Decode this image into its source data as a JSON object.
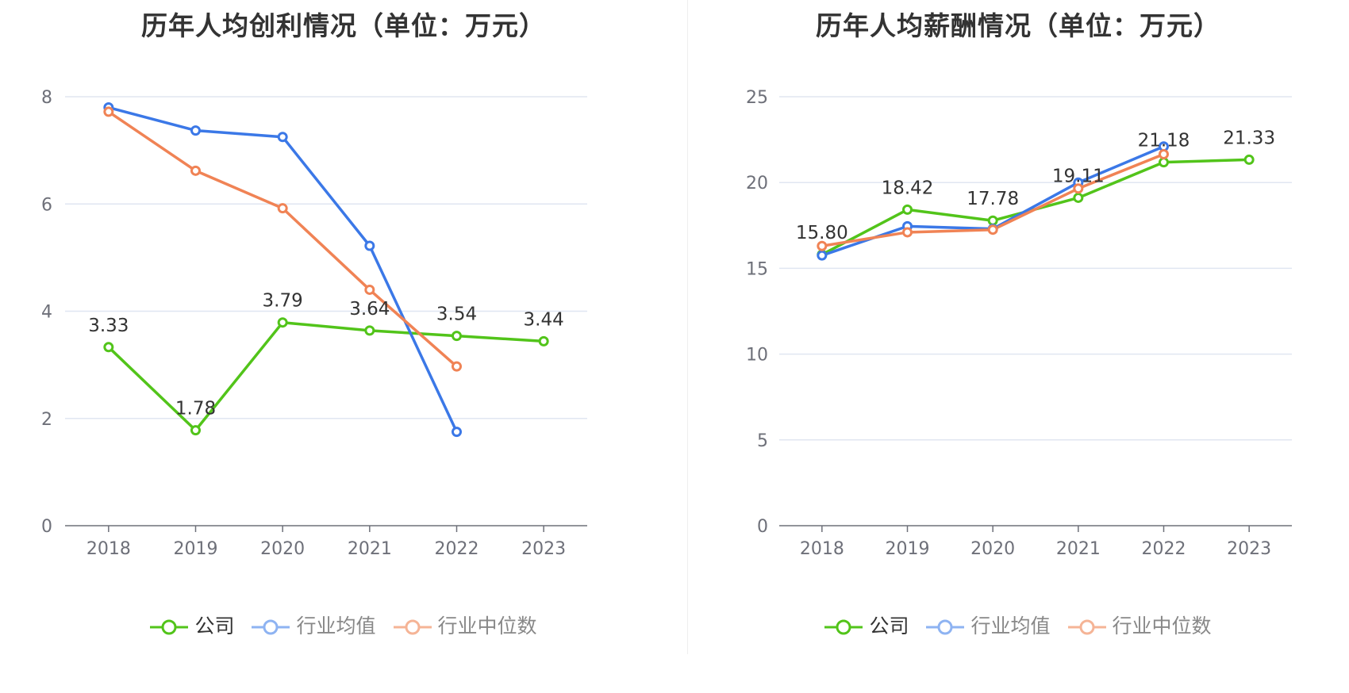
{
  "charts": [
    {
      "title": "历年人均创利情况（单位：万元）",
      "legend": [
        {
          "label": "公司",
          "color": "#52c41a"
        },
        {
          "label": "行业均值",
          "color": "#8eb3f2"
        },
        {
          "label": "行业中位数",
          "color": "#f5b496"
        }
      ]
    },
    {
      "title": "历年人均薪酬情况（单位：万元）",
      "legend": [
        {
          "label": "公司",
          "color": "#52c41a"
        },
        {
          "label": "行业均值",
          "color": "#8eb3f2"
        },
        {
          "label": "行业中位数",
          "color": "#f5b496"
        }
      ]
    }
  ],
  "chart_data": [
    {
      "type": "line",
      "title": "历年人均创利情况（单位：万元）",
      "categories": [
        "2018",
        "2019",
        "2020",
        "2021",
        "2022",
        "2023"
      ],
      "ylim": [
        0,
        8
      ],
      "yticks": [
        "0",
        "2",
        "4",
        "6",
        "8"
      ],
      "grid": true,
      "legend_position": "bottom",
      "series": [
        {
          "name": "公司",
          "color": "#52c41a",
          "values": [
            3.33,
            1.78,
            3.79,
            3.64,
            3.54,
            3.44
          ],
          "labels": [
            "3.33",
            "1.78",
            "3.79",
            "3.64",
            "3.54",
            "3.44"
          ]
        },
        {
          "name": "行业均值",
          "color": "#3b78e7",
          "values": [
            7.8,
            7.37,
            7.25,
            5.22,
            1.75,
            null
          ]
        },
        {
          "name": "行业中位数",
          "color": "#f08355",
          "values": [
            7.72,
            6.62,
            5.92,
            4.4,
            2.97,
            null
          ]
        }
      ]
    },
    {
      "type": "line",
      "title": "历年人均薪酬情况（单位：万元）",
      "categories": [
        "2018",
        "2019",
        "2020",
        "2021",
        "2022",
        "2023"
      ],
      "ylim": [
        0,
        25
      ],
      "yticks": [
        "0",
        "5",
        "10",
        "15",
        "20",
        "25"
      ],
      "grid": true,
      "legend_position": "bottom",
      "series": [
        {
          "name": "公司",
          "color": "#52c41a",
          "values": [
            15.8,
            18.42,
            17.78,
            19.11,
            21.18,
            21.33
          ],
          "labels": [
            "15.80",
            "18.42",
            "17.78",
            "19.11",
            "21.18",
            "21.33"
          ]
        },
        {
          "name": "行业均值",
          "color": "#3b78e7",
          "values": [
            15.75,
            17.45,
            17.3,
            20.0,
            22.1,
            null
          ]
        },
        {
          "name": "行业中位数",
          "color": "#f08355",
          "values": [
            16.3,
            17.1,
            17.25,
            19.65,
            21.65,
            null
          ]
        }
      ]
    }
  ]
}
